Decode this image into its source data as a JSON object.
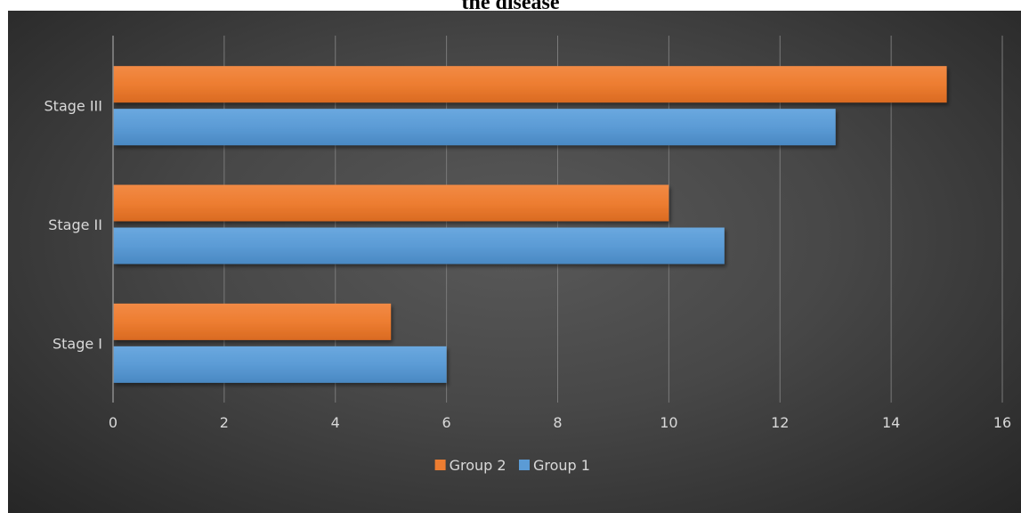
{
  "caption": "the disease",
  "colors": {
    "group2": "#ED7D31",
    "group1": "#5B9BD5"
  },
  "chart_data": {
    "type": "bar",
    "orientation": "horizontal",
    "categories": [
      "Stage I",
      "Stage II",
      "Stage III"
    ],
    "series": [
      {
        "name": "Group 2",
        "values": [
          5,
          10,
          15
        ],
        "color": "#ED7D31"
      },
      {
        "name": "Group 1",
        "values": [
          6,
          11,
          13
        ],
        "color": "#5B9BD5"
      }
    ],
    "xlim": [
      0,
      16
    ],
    "xticks": [
      0,
      2,
      4,
      6,
      8,
      10,
      12,
      14,
      16
    ],
    "grid": "vertical",
    "legend": "bottom"
  }
}
